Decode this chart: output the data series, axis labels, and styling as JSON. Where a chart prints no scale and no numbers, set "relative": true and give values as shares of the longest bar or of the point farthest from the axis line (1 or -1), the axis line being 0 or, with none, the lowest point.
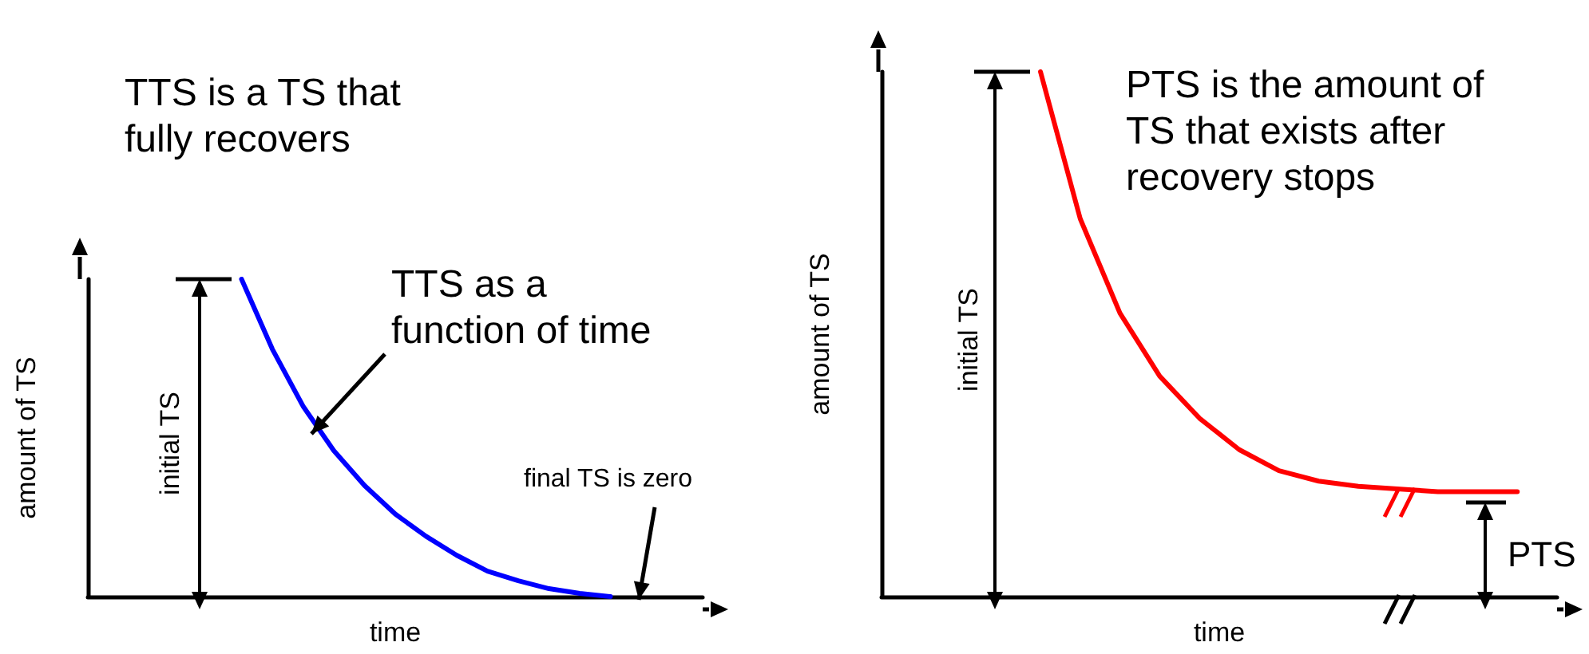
{
  "chart_data": [
    {
      "type": "line",
      "title": "TTS is a TS that fully recovers",
      "xlabel": "time",
      "ylabel": "amount of TS",
      "annotations": [
        "initial TS",
        "TTS as a function of time",
        "final TS is zero"
      ],
      "relative": true,
      "categories": [
        null,
        null,
        null,
        null,
        null,
        null,
        null,
        null,
        null,
        null,
        null,
        null,
        null,
        null,
        null,
        null,
        null,
        null,
        null,
        null,
        null
      ],
      "series": [
        {
          "color": "#0000ff",
          "values": [
            null,
            null,
            null,
            null,
            null,
            1,
            0.78,
            0.6,
            0.46,
            0.35,
            0.26,
            0.19,
            0.13,
            0.08,
            0.05,
            0.025,
            0.01,
            0,
            null,
            null,
            null
          ]
        }
      ]
    },
    {
      "type": "line",
      "title": "PTS is the amount of TS that exists after recovery stops",
      "xlabel": "time",
      "ylabel": "amount of TS",
      "annotations": [
        "initial TS",
        "PTS"
      ],
      "relative": true,
      "categories": [
        null,
        null,
        null,
        null,
        null,
        null,
        null,
        null,
        null,
        null,
        null,
        null,
        null,
        null,
        null,
        null,
        null,
        null
      ],
      "series": [
        {
          "color": "#ff0000",
          "values": [
            null,
            null,
            null,
            null,
            1,
            0.72,
            0.54,
            0.42,
            0.34,
            0.28,
            0.24,
            0.22,
            0.21,
            null,
            0.2,
            0.2,
            0.2,
            null
          ]
        }
      ]
    }
  ]
}
